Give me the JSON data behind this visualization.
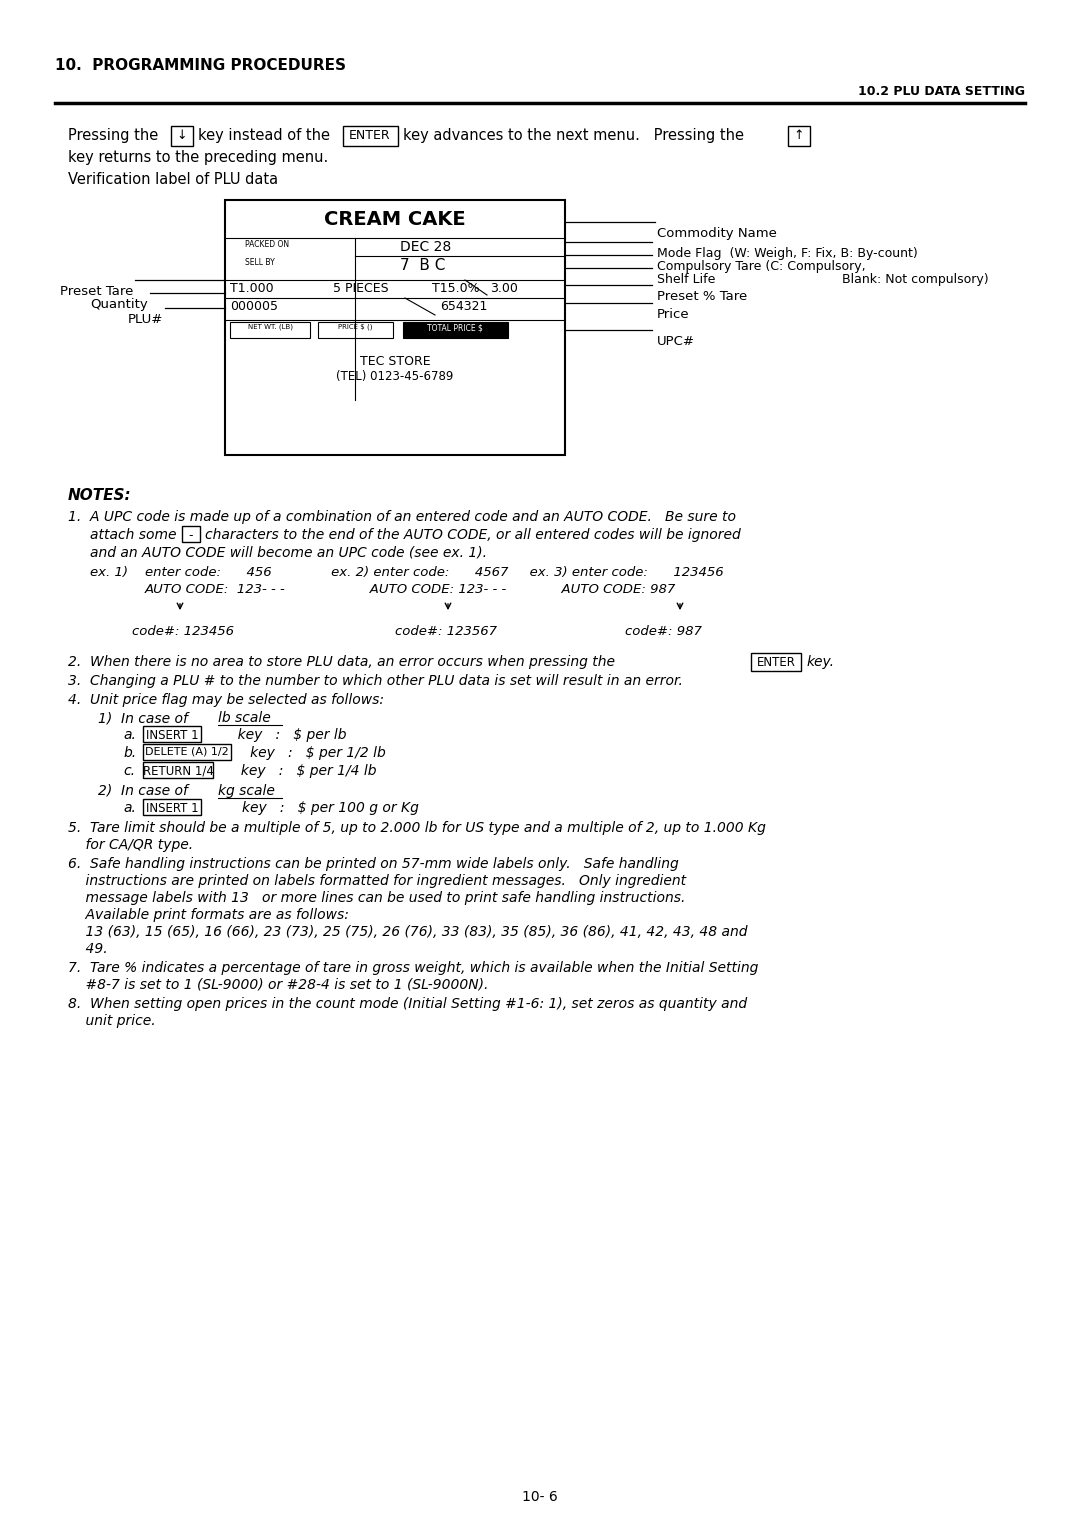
{
  "bg_color": "#ffffff",
  "header_left": "10.  PROGRAMMING PROCEDURES",
  "header_right": "10.2 PLU DATA SETTING",
  "page_number": "10- 6"
}
